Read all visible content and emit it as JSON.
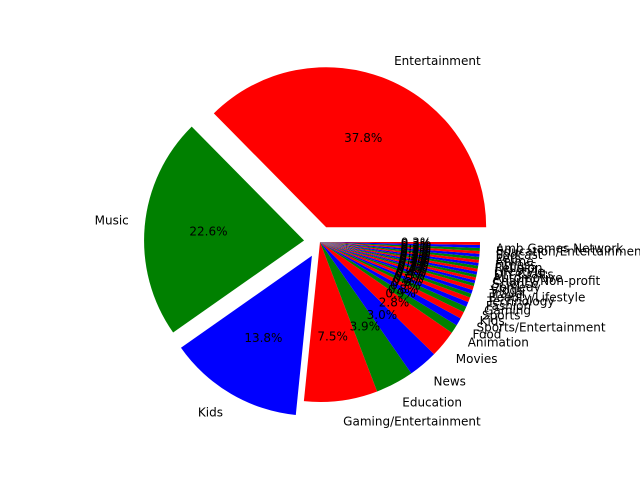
{
  "chart_data": {
    "type": "pie",
    "start_angle_deg": 0,
    "direction": "counterclockwise",
    "slices": [
      {
        "label": "Entertainment",
        "value": 37.8,
        "pct_label": "37.8%",
        "color": "#ff0000",
        "explode": 0.1
      },
      {
        "label": "Music",
        "value": 22.6,
        "pct_label": "22.6%",
        "color": "#008000",
        "explode": 0.1
      },
      {
        "label": "Kids",
        "value": 13.8,
        "pct_label": "13.8%",
        "color": "#0000ff",
        "explode": 0.1
      },
      {
        "label": "Gaming/Entertainment",
        "value": 7.5,
        "pct_label": "7.5%",
        "color": "#ff0000",
        "explode": 0
      },
      {
        "label": "Education",
        "value": 3.9,
        "pct_label": "3.9%",
        "color": "#008000",
        "explode": 0
      },
      {
        "label": "News",
        "value": 3.0,
        "pct_label": "3.0%",
        "color": "#0000ff",
        "explode": 0
      },
      {
        "label": "Movies",
        "value": 2.8,
        "pct_label": "2.8%",
        "color": "#ff0000",
        "explode": 0
      },
      {
        "label": "Animation",
        "value": 0.9,
        "pct_label": "0.9%",
        "color": "#008000",
        "explode": 0
      },
      {
        "label": "Food",
        "value": 0.8,
        "pct_label": "0.8%",
        "color": "#0000ff",
        "explode": 0
      },
      {
        "label": "Sports/Entertainment",
        "value": 0.7,
        "pct_label": "0.7%",
        "color": "#ff0000",
        "explode": 0
      },
      {
        "label": "Kids",
        "value": 0.6,
        "pct_label": "0.6%",
        "color": "#008000",
        "explode": 0
      },
      {
        "label": "Sports",
        "value": 0.5,
        "pct_label": "0.5%",
        "color": "#0000ff",
        "explode": 0
      },
      {
        "label": "Gaming",
        "value": 0.5,
        "pct_label": "0.5%",
        "color": "#ff0000",
        "explode": 0
      },
      {
        "label": "Fashion",
        "value": 0.4,
        "pct_label": "0.4%",
        "color": "#008000",
        "explode": 0
      },
      {
        "label": "Technology",
        "value": 0.4,
        "pct_label": "0.4%",
        "color": "#0000ff",
        "explode": 0
      },
      {
        "label": "Beauty/Lifestyle",
        "value": 0.4,
        "pct_label": "0.4%",
        "color": "#ff0000",
        "explode": 0
      },
      {
        "label": "Travel",
        "value": 0.3,
        "pct_label": "0.3%",
        "color": "#008000",
        "explode": 0
      },
      {
        "label": "Vlogs",
        "value": 0.3,
        "pct_label": "0.3%",
        "color": "#0000ff",
        "explode": 0
      },
      {
        "label": "Comedy",
        "value": 0.3,
        "pct_label": "0.3%",
        "color": "#ff0000",
        "explode": 0
      },
      {
        "label": "Science",
        "value": 0.3,
        "pct_label": "0.3%",
        "color": "#008000",
        "explode": 0
      },
      {
        "label": "Charity/Non-profit",
        "value": 0.3,
        "pct_label": "0.3%",
        "color": "#0000ff",
        "explode": 0
      },
      {
        "label": "Automotive",
        "value": 0.3,
        "pct_label": "0.3%",
        "color": "#ff0000",
        "explode": 0
      },
      {
        "label": "DIY/Crafts",
        "value": 0.3,
        "pct_label": "0.3%",
        "color": "#008000",
        "explode": 0
      },
      {
        "label": "Lifestyle",
        "value": 0.3,
        "pct_label": "0.3%",
        "color": "#0000ff",
        "explode": 0
      },
      {
        "label": "Religion",
        "value": 0.3,
        "pct_label": "0.3%",
        "color": "#ff0000",
        "explode": 0
      },
      {
        "label": "Fitness",
        "value": 0.3,
        "pct_label": "0.3%",
        "color": "#008000",
        "explode": 0
      },
      {
        "label": "Anime",
        "value": 0.3,
        "pct_label": "0.3%",
        "color": "#0000ff",
        "explode": 0
      },
      {
        "label": "Pets",
        "value": 0.3,
        "pct_label": "0.3%",
        "color": "#ff0000",
        "explode": 0
      },
      {
        "label": "Podcast",
        "value": 0.3,
        "pct_label": "0.3%",
        "color": "#008000",
        "explode": 0
      },
      {
        "label": "Education/Entertainment",
        "value": 0.3,
        "pct_label": "0.3%",
        "color": "#0000ff",
        "explode": 0
      },
      {
        "label": "Amb Games Network",
        "value": 0.3,
        "pct_label": "0.3%",
        "color": "#ff0000",
        "explode": 0
      }
    ]
  }
}
